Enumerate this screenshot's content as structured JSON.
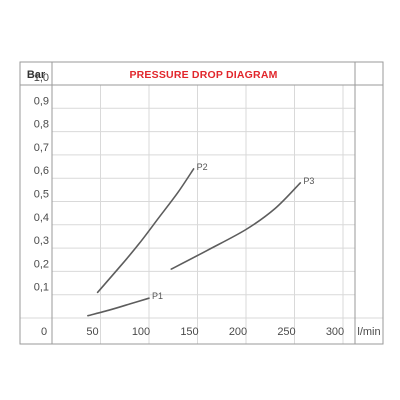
{
  "colors": {
    "title": "#e1262c",
    "origin": "#e1262c",
    "curve": "#5d5d5d",
    "grid": "#d9d9d9",
    "frame": "#9a9a9a",
    "text": "#4a4a4a"
  },
  "chart_data": {
    "type": "line",
    "title": "PRESSURE DROP DIAGRAM",
    "ylabel": "Bar",
    "xlabel": "l/min",
    "origin_label": "0",
    "xlim": [
      0,
      300
    ],
    "ylim": [
      0,
      1.0
    ],
    "x_ticks": [
      50,
      100,
      150,
      200,
      250,
      300
    ],
    "x_tick_labels": [
      "50",
      "100",
      "150",
      "200",
      "250",
      "300"
    ],
    "y_ticks": [
      0.1,
      0.2,
      0.3,
      0.4,
      0.5,
      0.6,
      0.7,
      0.8,
      0.9,
      1.0
    ],
    "y_tick_labels": [
      "0,1",
      "0,2",
      "0,3",
      "0,4",
      "0,5",
      "0,6",
      "0,7",
      "0,8",
      "0,9",
      "1,0"
    ],
    "grid": true,
    "series": [
      {
        "name": "P1",
        "points": [
          [
            37,
            0.01
          ],
          [
            60,
            0.035
          ],
          [
            80,
            0.06
          ],
          [
            100,
            0.085
          ]
        ]
      },
      {
        "name": "P2",
        "points": [
          [
            47,
            0.11
          ],
          [
            70,
            0.22
          ],
          [
            90,
            0.32
          ],
          [
            110,
            0.43
          ],
          [
            130,
            0.54
          ],
          [
            146,
            0.64
          ]
        ]
      },
      {
        "name": "P3",
        "points": [
          [
            123,
            0.21
          ],
          [
            160,
            0.29
          ],
          [
            200,
            0.38
          ],
          [
            230,
            0.47
          ],
          [
            256,
            0.58
          ]
        ]
      }
    ]
  }
}
